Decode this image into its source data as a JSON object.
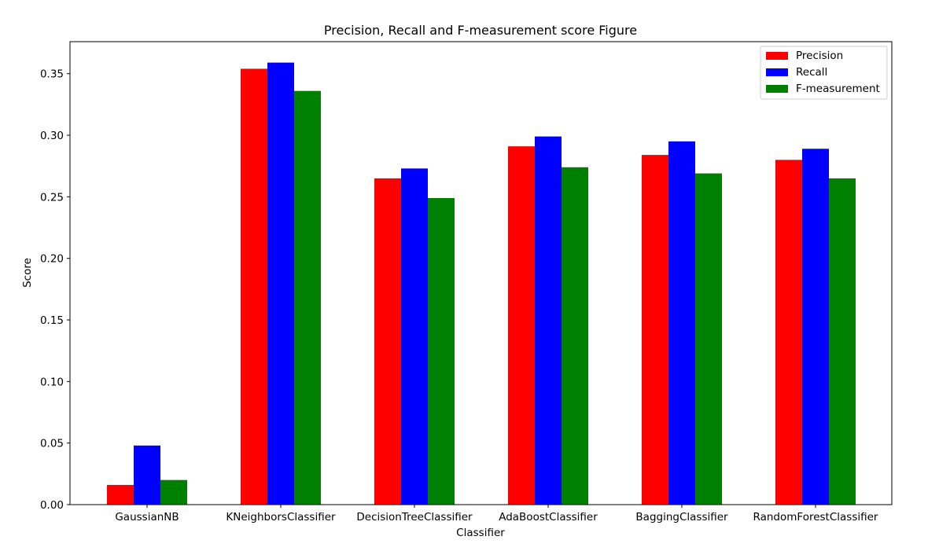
{
  "chart_data": {
    "type": "bar",
    "title": "Precision, Recall and F-measurement score Figure",
    "xlabel": "Classifier",
    "ylabel": "Score",
    "categories": [
      "GaussianNB",
      "KNeighborsClassifier",
      "DecisionTreeClassifier",
      "AdaBoostClassifier",
      "BaggingClassifier",
      "RandomForestClassifier"
    ],
    "series": [
      {
        "name": "Precision",
        "color": "#ff0000",
        "values": [
          0.016,
          0.354,
          0.265,
          0.291,
          0.284,
          0.28
        ]
      },
      {
        "name": "Recall",
        "color": "#0000ff",
        "values": [
          0.048,
          0.359,
          0.273,
          0.299,
          0.295,
          0.289
        ]
      },
      {
        "name": "F-measurement",
        "color": "#008000",
        "values": [
          0.02,
          0.336,
          0.249,
          0.274,
          0.269,
          0.265
        ]
      }
    ],
    "ylim": [
      0,
      0.376
    ],
    "yticks": [
      "0.00",
      "0.05",
      "0.10",
      "0.15",
      "0.20",
      "0.25",
      "0.30",
      "0.35"
    ],
    "legend_position": "top-right",
    "grid": false
  }
}
